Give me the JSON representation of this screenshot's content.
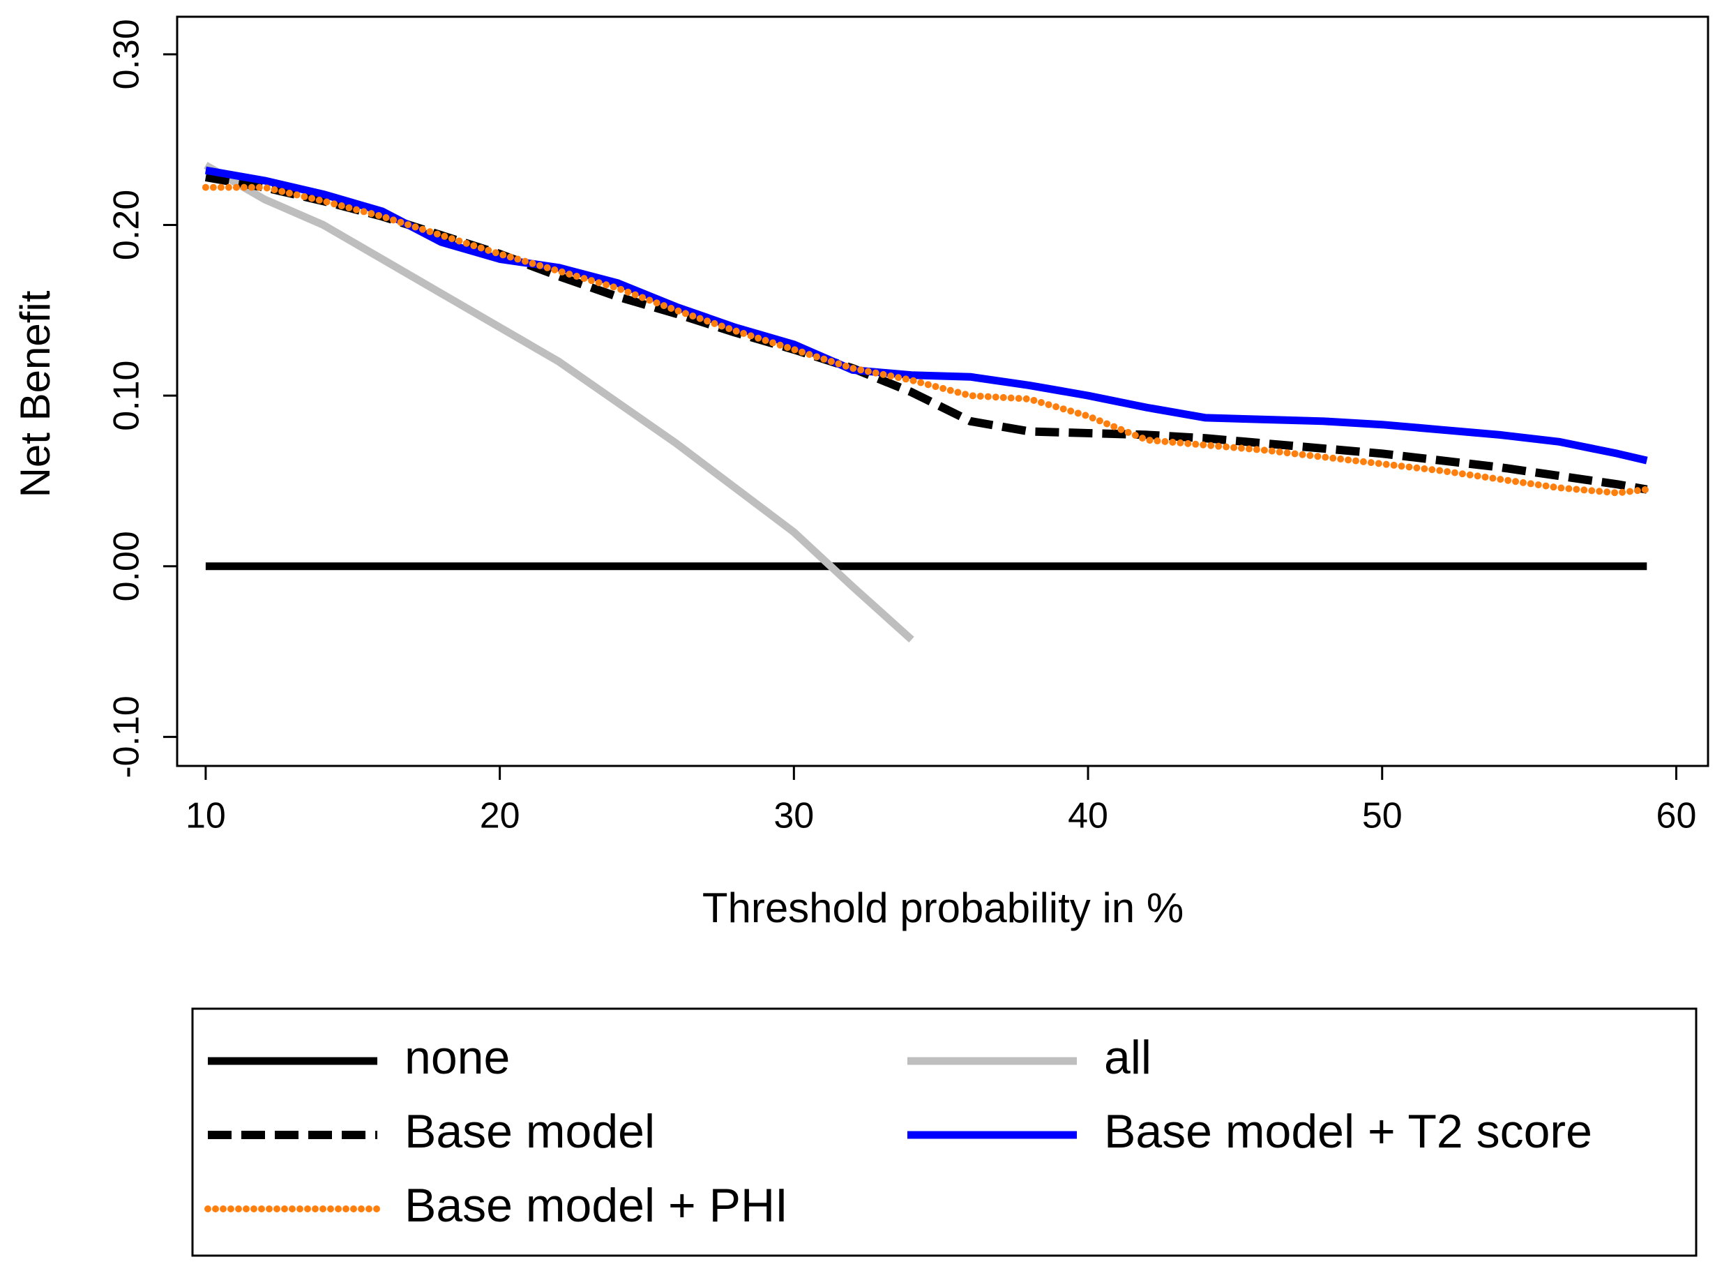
{
  "chart_data": {
    "type": "line",
    "x_label": "Threshold probability in %",
    "y_label": "Net Benefit",
    "x": [
      10,
      12,
      14,
      16,
      18,
      20,
      22,
      24,
      26,
      28,
      30,
      32,
      34,
      36,
      38,
      40,
      42,
      44,
      46,
      48,
      50,
      52,
      54,
      56,
      58,
      59
    ],
    "xlim": [
      9.03,
      61.08
    ],
    "ylim": [
      -0.117,
      0.322
    ],
    "xticks": [
      10,
      20,
      30,
      40,
      50,
      60
    ],
    "yticks": [
      {
        "value": -0.1,
        "label": "-0.10"
      },
      {
        "value": 0,
        "label": "0.00"
      },
      {
        "value": 0.1,
        "label": "0.10"
      },
      {
        "value": 0.2,
        "label": "0.20"
      },
      {
        "value": 0.3,
        "label": "0.30"
      }
    ],
    "series": [
      {
        "name": "none",
        "color": "#000000",
        "style": "solid",
        "values": [
          0,
          0,
          0,
          0,
          0,
          0,
          0,
          0,
          0,
          0,
          0,
          0,
          0,
          0,
          0,
          0,
          0,
          0,
          0,
          0,
          0,
          0,
          0,
          0,
          0,
          0
        ]
      },
      {
        "name": "all",
        "color": "#bebebe",
        "style": "solid",
        "values": [
          0.235,
          0.215,
          0.2,
          0.18,
          0.16,
          0.14,
          0.12,
          0.096,
          0.072,
          0.046,
          0.02,
          -0.012,
          -0.043,
          null,
          null,
          null,
          null,
          null,
          null,
          null,
          null,
          null,
          null,
          null,
          null,
          null
        ]
      },
      {
        "name": "Base model",
        "color": "#000000",
        "style": "dashed",
        "values": [
          0.228,
          0.222,
          0.214,
          0.205,
          0.194,
          0.183,
          0.17,
          0.158,
          0.148,
          0.137,
          0.127,
          0.116,
          0.102,
          0.085,
          0.079,
          0.078,
          0.077,
          0.075,
          0.072,
          0.069,
          0.066,
          0.062,
          0.058,
          0.053,
          0.048,
          0.045
        ]
      },
      {
        "name": "Base model + T2 score",
        "color": "#0000ff",
        "style": "solid",
        "values": [
          0.232,
          0.226,
          0.218,
          0.208,
          0.19,
          0.18,
          0.175,
          0.166,
          0.152,
          0.14,
          0.13,
          0.115,
          0.112,
          0.111,
          0.106,
          0.1,
          0.093,
          0.087,
          0.086,
          0.085,
          0.083,
          0.08,
          0.077,
          0.073,
          0.066,
          0.062
        ]
      },
      {
        "name": "Base model + PHI",
        "color": "#ff7f0e",
        "style": "dotted",
        "values": [
          0.222,
          0.222,
          0.214,
          0.205,
          0.194,
          0.183,
          0.173,
          0.163,
          0.15,
          0.138,
          0.127,
          0.116,
          0.109,
          0.1,
          0.098,
          0.088,
          0.074,
          0.071,
          0.068,
          0.064,
          0.06,
          0.056,
          0.051,
          0.046,
          0.043,
          0.045
        ]
      }
    ]
  }
}
